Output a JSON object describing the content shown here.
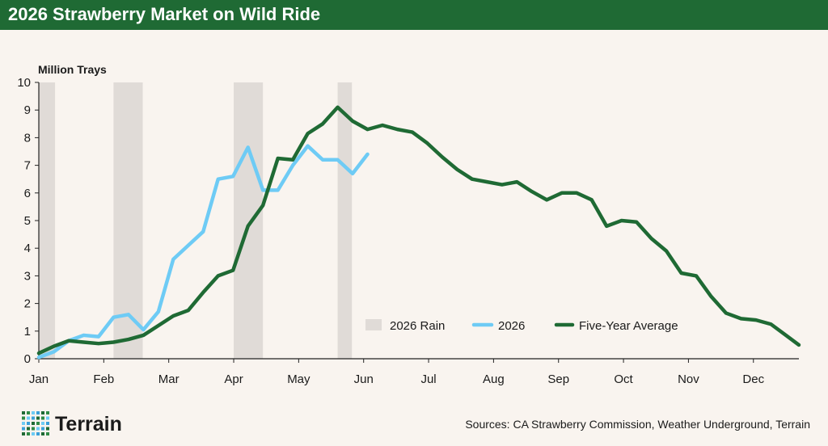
{
  "header": {
    "title": "2026 Strawberry Market on Wild Ride"
  },
  "footer": {
    "logo_text": "Terrain",
    "sources": "Sources: CA Strawberry Commission, Weather Underground, Terrain"
  },
  "colors": {
    "title_bar": "#1f6a34",
    "series_2026": "#6ecbf5",
    "series_avg": "#1f6a34",
    "rain": "#e0dbd7",
    "background": "#f9f4ef"
  },
  "chart_data": {
    "type": "line",
    "title": "2026 Strawberry Market on Wild Ride",
    "ylabel": "Million Trays",
    "xlabel": "",
    "ylim": [
      0,
      10
    ],
    "yticks": [
      "0",
      "1",
      "2",
      "3",
      "4",
      "5",
      "6",
      "7",
      "8",
      "9",
      "10"
    ],
    "xlim": [
      0,
      11.7
    ],
    "month_labels": [
      "Jan",
      "Feb",
      "Mar",
      "Apr",
      "May",
      "Jun",
      "Jul",
      "Aug",
      "Sep",
      "Oct",
      "Nov",
      "Dec"
    ],
    "legend": {
      "position": "bottom-center",
      "items": [
        "2026 Rain",
        "2026",
        "Five-Year Average"
      ]
    },
    "grid": false,
    "rain_periods": [
      [
        0.0,
        0.25
      ],
      [
        1.15,
        1.6
      ],
      [
        3.0,
        3.45
      ],
      [
        4.6,
        4.82
      ]
    ],
    "series": [
      {
        "name": "2026",
        "color": "#6ecbf5",
        "x": [
          0.0,
          0.23,
          0.46,
          0.69,
          0.92,
          1.15,
          1.38,
          1.61,
          1.84,
          2.07,
          2.3,
          2.53,
          2.76,
          2.99,
          3.22,
          3.45,
          3.68,
          3.91,
          4.14,
          4.37,
          4.6,
          4.83,
          5.06
        ],
        "y": [
          0.05,
          0.25,
          0.65,
          0.85,
          0.8,
          1.5,
          1.6,
          1.05,
          1.7,
          3.6,
          4.1,
          4.6,
          6.5,
          6.6,
          7.65,
          6.1,
          6.1,
          7.0,
          7.7,
          7.2,
          7.2,
          6.7,
          7.4
        ]
      },
      {
        "name": "Five-Year Average",
        "color": "#1f6a34",
        "x": [
          0.0,
          0.23,
          0.46,
          0.69,
          0.92,
          1.15,
          1.38,
          1.61,
          1.84,
          2.07,
          2.3,
          2.53,
          2.76,
          2.99,
          3.22,
          3.45,
          3.68,
          3.91,
          4.14,
          4.37,
          4.6,
          4.83,
          5.06,
          5.29,
          5.52,
          5.75,
          5.98,
          6.21,
          6.44,
          6.67,
          6.9,
          7.13,
          7.36,
          7.59,
          7.82,
          8.05,
          8.28,
          8.51,
          8.74,
          8.97,
          9.2,
          9.43,
          9.66,
          9.89,
          10.12,
          10.35,
          10.58,
          10.81,
          11.04,
          11.27,
          11.5,
          11.7
        ],
        "y": [
          0.2,
          0.45,
          0.65,
          0.6,
          0.55,
          0.6,
          0.7,
          0.85,
          1.2,
          1.55,
          1.75,
          2.4,
          3.0,
          3.2,
          4.8,
          5.55,
          7.25,
          7.2,
          8.15,
          8.5,
          9.1,
          8.6,
          8.3,
          8.45,
          8.3,
          8.2,
          7.8,
          7.3,
          6.85,
          6.5,
          6.4,
          6.3,
          6.4,
          6.05,
          5.75,
          6.0,
          6.0,
          5.75,
          4.8,
          5.0,
          4.95,
          4.35,
          3.9,
          3.1,
          3.0,
          2.25,
          1.65,
          1.45,
          1.4,
          1.25,
          0.85,
          0.5
        ]
      }
    ]
  }
}
